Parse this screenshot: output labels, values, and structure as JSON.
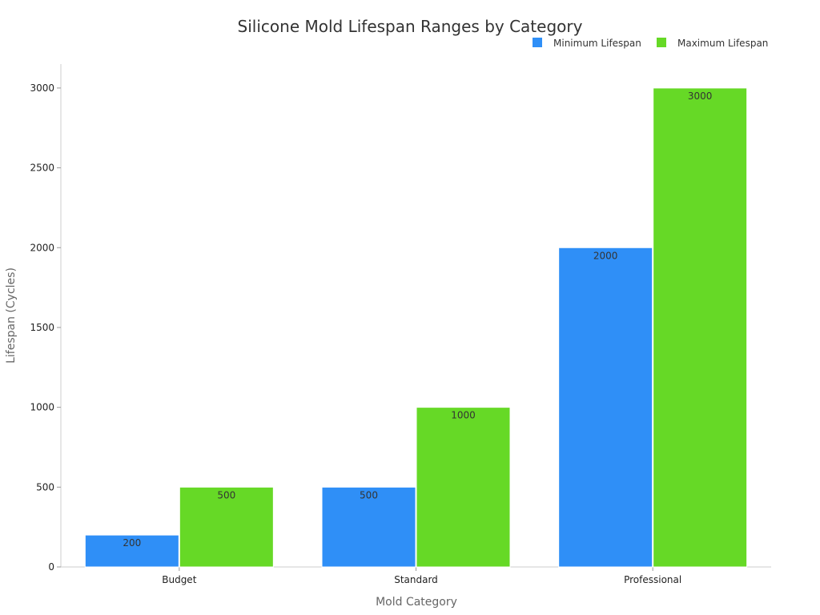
{
  "chart_data": {
    "type": "bar",
    "title": "Silicone Mold Lifespan Ranges by Category",
    "xlabel": "Mold Category",
    "ylabel": "Lifespan (Cycles)",
    "categories": [
      "Budget",
      "Standard",
      "Professional"
    ],
    "series": [
      {
        "name": "Minimum Lifespan",
        "color": "#2f8ff7",
        "values": [
          200,
          500,
          2000
        ]
      },
      {
        "name": "Maximum Lifespan",
        "color": "#66d926",
        "values": [
          500,
          1000,
          3000
        ]
      }
    ],
    "ylim": [
      0,
      3150
    ],
    "yticks": [
      0,
      500,
      1000,
      1500,
      2000,
      2500,
      3000
    ],
    "grid": false,
    "legend_position": "top-right"
  }
}
